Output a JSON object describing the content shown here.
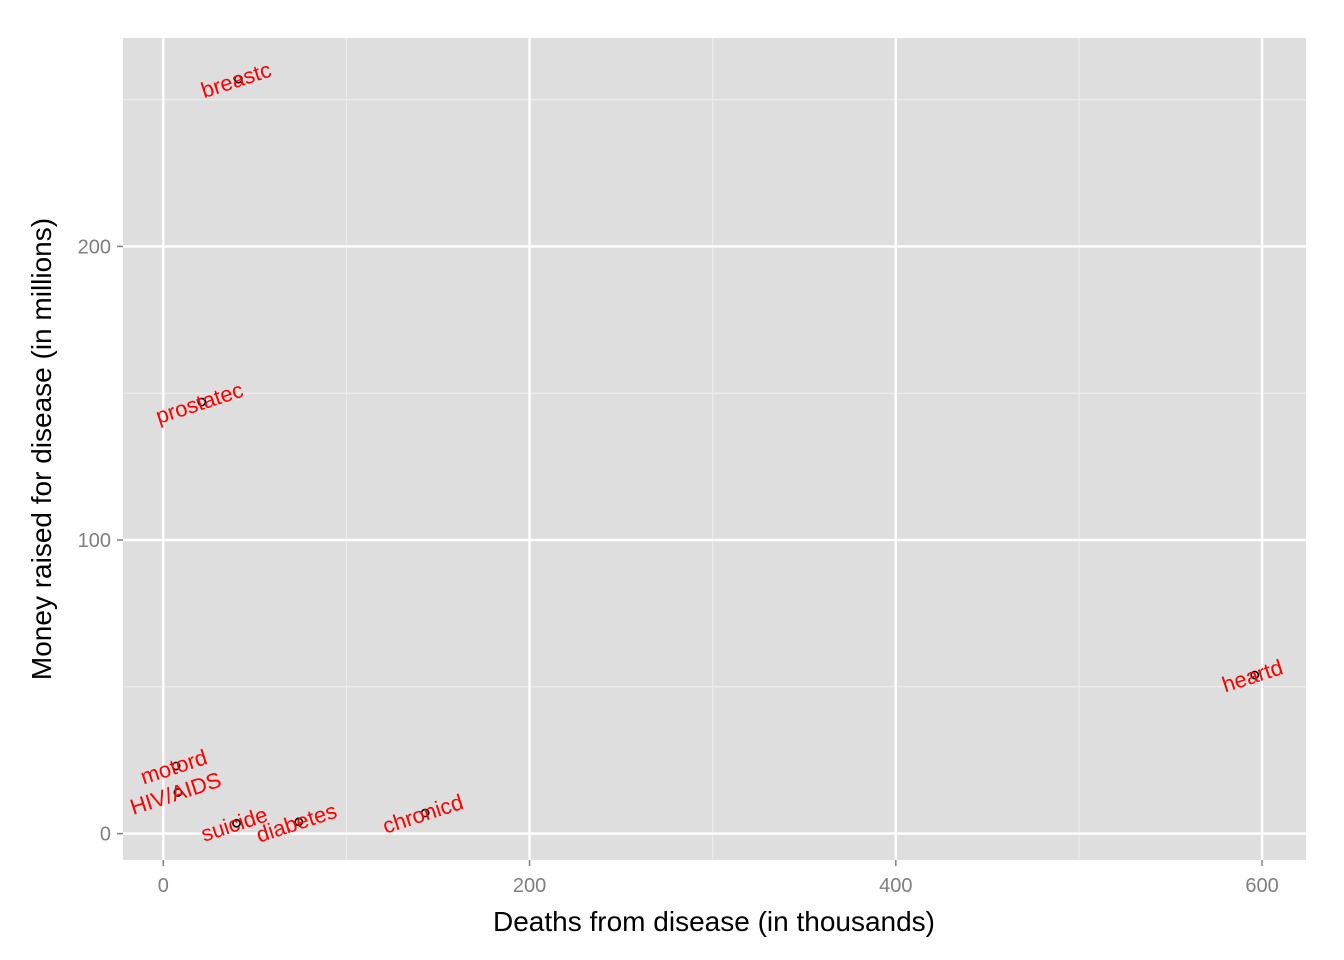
{
  "chart_data": {
    "type": "scatter",
    "xlabel": "Deaths from disease (in thousands)",
    "ylabel": "Money raised for disease (in millions)",
    "xlim": [
      -22,
      624
    ],
    "ylim": [
      -9,
      271
    ],
    "x_ticks": [
      0,
      200,
      400,
      600
    ],
    "y_ticks": [
      0,
      100,
      200
    ],
    "grid": true,
    "legend": "none",
    "label_color": "#ff0000",
    "point_color": "#000000",
    "panel_background": "#dedede",
    "points": [
      {
        "label": "breastc",
        "x": 41,
        "y": 257
      },
      {
        "label": "prostatec",
        "x": 21,
        "y": 147
      },
      {
        "label": "heartd",
        "x": 596,
        "y": 54
      },
      {
        "label": "motord",
        "x": 7,
        "y": 23
      },
      {
        "label": "HIV/AIDS",
        "x": 8,
        "y": 14
      },
      {
        "label": "suicide",
        "x": 40,
        "y": 3.5
      },
      {
        "label": "diabetes",
        "x": 74,
        "y": 4
      },
      {
        "label": "chronicd",
        "x": 143,
        "y": 7
      }
    ]
  }
}
